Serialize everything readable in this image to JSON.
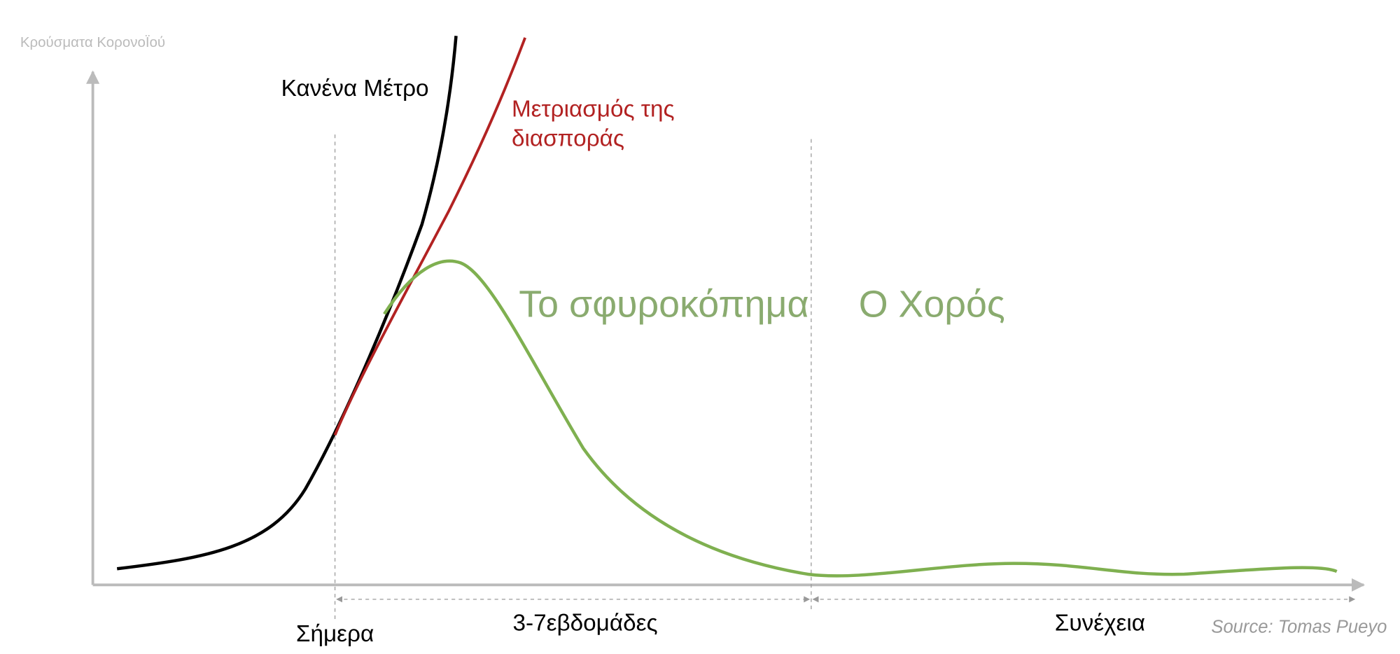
{
  "y_axis_label": "Κρούσματα ΚορονοΪού",
  "curve_labels": {
    "no_measures": "Κανένα Μέτρο",
    "mitigation": [
      "Μετριασμός της",
      "διασποράς"
    ]
  },
  "phases": {
    "hammer": "Το σφυροκόπημα",
    "dance": "Ο Χορός"
  },
  "timeline": {
    "today": "Σήμερα",
    "weeks": "3-7εβδομάδες",
    "after": "Συνέχεια"
  },
  "source": "Source: Tomas Pueyo"
}
